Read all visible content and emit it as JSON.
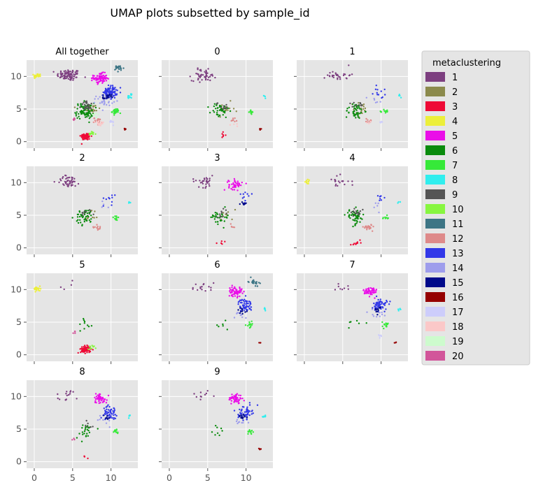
{
  "chart_data": {
    "type": "scatter",
    "title": "UMAP plots subsetted by sample_id",
    "facets": [
      "All together",
      "0",
      "1",
      "2",
      "3",
      "4",
      "5",
      "6",
      "7",
      "8",
      "9"
    ],
    "x_ticks": [
      0,
      5,
      10
    ],
    "y_ticks": [
      0,
      5,
      10
    ],
    "xlim": [
      -1,
      13.5
    ],
    "ylim": [
      -1,
      12.5
    ],
    "grid": true,
    "legend": {
      "title": "metaclustering",
      "placement": "right",
      "entries": [
        {
          "label": "1",
          "color": "#7d3f80"
        },
        {
          "label": "2",
          "color": "#8b8a4c"
        },
        {
          "label": "3",
          "color": "#ee0a36"
        },
        {
          "label": "4",
          "color": "#ecef3a"
        },
        {
          "label": "5",
          "color": "#ea0ee8"
        },
        {
          "label": "6",
          "color": "#0a8b0d"
        },
        {
          "label": "7",
          "color": "#36e939"
        },
        {
          "label": "8",
          "color": "#30eeee"
        },
        {
          "label": "9",
          "color": "#555555"
        },
        {
          "label": "10",
          "color": "#87f640"
        },
        {
          "label": "11",
          "color": "#3d7585"
        },
        {
          "label": "12",
          "color": "#de8a8a"
        },
        {
          "label": "13",
          "color": "#3238e8"
        },
        {
          "label": "14",
          "color": "#9e9dec"
        },
        {
          "label": "15",
          "color": "#000a8a"
        },
        {
          "label": "16",
          "color": "#950000"
        },
        {
          "label": "17",
          "color": "#cdcdfb"
        },
        {
          "label": "18",
          "color": "#fbc8c8"
        },
        {
          "label": "19",
          "color": "#cdfbcd"
        },
        {
          "label": "20",
          "color": "#d2559a"
        }
      ]
    },
    "clusters": [
      {
        "label": "1",
        "x": 4.5,
        "y": 10.2,
        "sx": 1.4,
        "sy": 0.8
      },
      {
        "label": "2",
        "x": 7.5,
        "y": 5.0,
        "sx": 1.0,
        "sy": 1.0
      },
      {
        "label": "3",
        "x": 6.7,
        "y": 0.8,
        "sx": 0.6,
        "sy": 0.5
      },
      {
        "label": "4",
        "x": 0.4,
        "y": 10.1,
        "sx": 0.4,
        "sy": 0.3
      },
      {
        "label": "5",
        "x": 8.6,
        "y": 9.7,
        "sx": 0.8,
        "sy": 0.7
      },
      {
        "label": "6",
        "x": 6.6,
        "y": 4.7,
        "sx": 1.1,
        "sy": 1.1
      },
      {
        "label": "7",
        "x": 10.6,
        "y": 4.6,
        "sx": 0.4,
        "sy": 0.4
      },
      {
        "label": "8",
        "x": 12.4,
        "y": 7.0,
        "sx": 0.25,
        "sy": 0.25
      },
      {
        "label": "9",
        "x": 7.0,
        "y": 5.5,
        "sx": 0.8,
        "sy": 0.6
      },
      {
        "label": "10",
        "x": 7.5,
        "y": 1.2,
        "sx": 0.5,
        "sy": 0.3
      },
      {
        "label": "11",
        "x": 11.0,
        "y": 11.2,
        "sx": 0.6,
        "sy": 0.5
      },
      {
        "label": "12",
        "x": 8.3,
        "y": 3.2,
        "sx": 0.5,
        "sy": 0.4
      },
      {
        "label": "13",
        "x": 9.9,
        "y": 7.6,
        "sx": 0.8,
        "sy": 0.9
      },
      {
        "label": "14",
        "x": 9.2,
        "y": 6.3,
        "sx": 1.0,
        "sy": 0.7
      },
      {
        "label": "15",
        "x": 9.5,
        "y": 6.8,
        "sx": 0.5,
        "sy": 0.4
      },
      {
        "label": "16",
        "x": 11.8,
        "y": 1.9,
        "sx": 0.15,
        "sy": 0.15
      },
      {
        "label": "17",
        "x": 10.0,
        "y": 3.0,
        "sx": 0.4,
        "sy": 0.3
      },
      {
        "label": "18",
        "x": 8.5,
        "y": 2.8,
        "sx": 0.5,
        "sy": 0.4
      },
      {
        "label": "19",
        "x": 8.0,
        "y": 4.0,
        "sx": 0.6,
        "sy": 0.6
      },
      {
        "label": "20",
        "x": 5.2,
        "y": 3.4,
        "sx": 0.2,
        "sy": 0.2
      }
    ],
    "facet_composition": {
      "All together": {
        "1": 90,
        "2": 25,
        "3": 70,
        "4": 35,
        "5": 90,
        "6": 90,
        "7": 35,
        "8": 12,
        "9": 30,
        "10": 12,
        "11": 20,
        "12": 25,
        "13": 90,
        "14": 30,
        "15": 20,
        "16": 8,
        "17": 10,
        "18": 15,
        "19": 8,
        "20": 8
      },
      "0": {
        "1": 50,
        "2": 15,
        "3": 6,
        "6": 40,
        "7": 10,
        "8": 4,
        "9": 10,
        "12": 8,
        "16": 5,
        "18": 4
      },
      "1": {
        "1": 30,
        "2": 20,
        "6": 45,
        "7": 12,
        "8": 4,
        "9": 10,
        "12": 10,
        "13": 12,
        "14": 6,
        "17": 4,
        "18": 4
      },
      "2": {
        "1": 45,
        "2": 10,
        "6": 45,
        "7": 12,
        "8": 4,
        "9": 10,
        "12": 12,
        "13": 10,
        "14": 4
      },
      "3": {
        "1": 30,
        "2": 8,
        "3": 5,
        "5": 45,
        "6": 30,
        "9": 10,
        "12": 5,
        "13": 10,
        "15": 8
      },
      "4": {
        "1": 20,
        "3": 10,
        "4": 10,
        "6": 50,
        "7": 8,
        "8": 3,
        "9": 15,
        "12": 25,
        "13": 8,
        "14": 5
      },
      "5": {
        "1": 4,
        "3": 70,
        "4": 30,
        "6": 10,
        "10": 10,
        "20": 4
      },
      "6": {
        "1": 15,
        "5": 60,
        "6": 6,
        "7": 15,
        "8": 5,
        "11": 20,
        "13": 60,
        "14": 10,
        "15": 10,
        "16": 3
      },
      "7": {
        "1": 8,
        "5": 60,
        "6": 6,
        "7": 15,
        "8": 5,
        "13": 60,
        "14": 10,
        "15": 10,
        "16": 3,
        "17": 5
      },
      "8": {
        "1": 15,
        "3": 3,
        "5": 50,
        "6": 25,
        "7": 12,
        "8": 6,
        "9": 6,
        "13": 50,
        "14": 10,
        "15": 8,
        "20": 3
      },
      "9": {
        "1": 10,
        "5": 60,
        "6": 8,
        "7": 12,
        "8": 6,
        "13": 50,
        "14": 10,
        "15": 15,
        "16": 4
      }
    }
  }
}
